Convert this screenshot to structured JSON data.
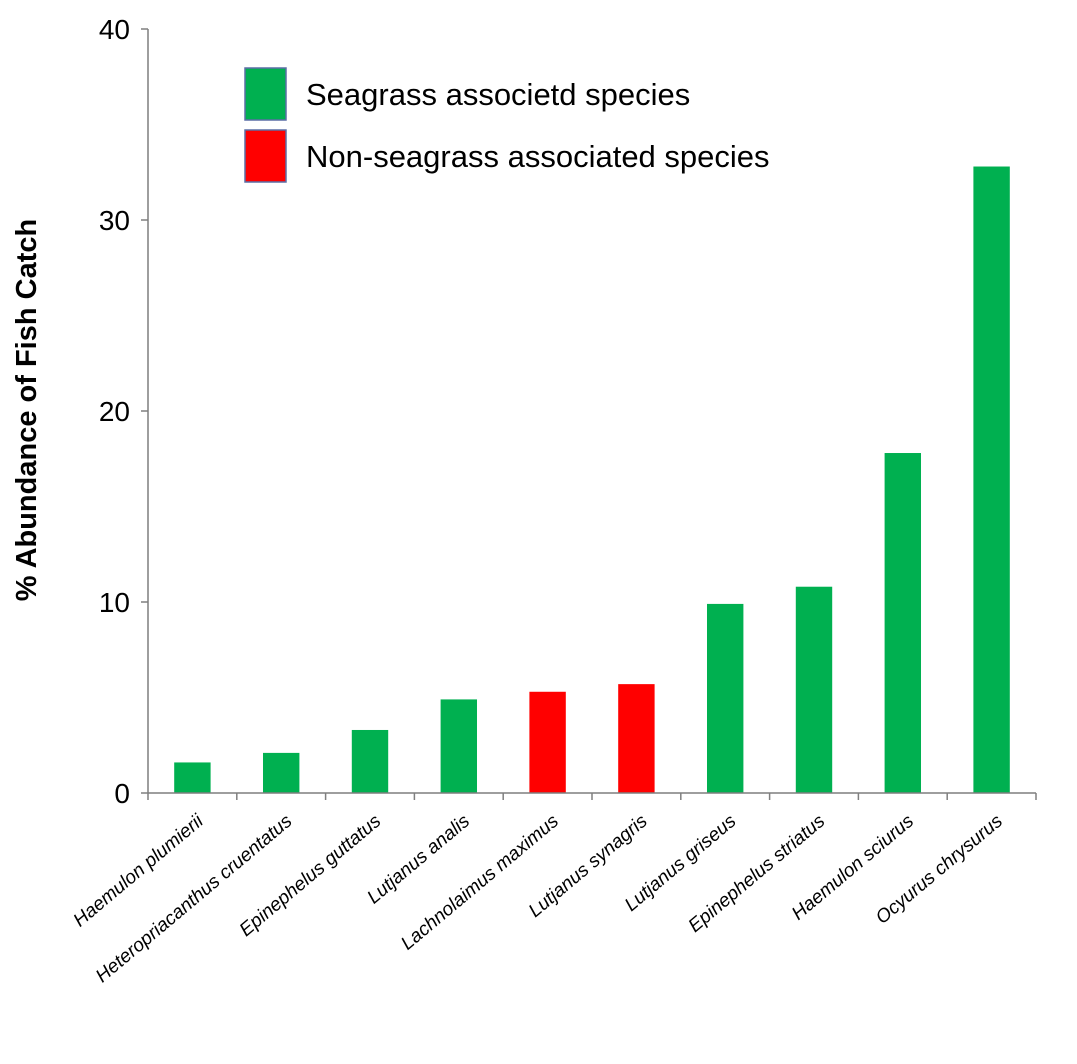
{
  "chart_data": {
    "type": "bar",
    "title": "",
    "xlabel": "",
    "ylabel": "% Abundance of Fish Catch",
    "ylim": [
      0,
      40
    ],
    "yticks": [
      0,
      10,
      20,
      30,
      40
    ],
    "grid": false,
    "legend_position": "top-left",
    "categories": [
      "Haemulon plumierii",
      "Heteropriacanthus cruentatus",
      "Epinephelus guttatus",
      "Lutjanus analis",
      "Lachnolaimus maximus",
      "Lutjanus synagris",
      "Lutjanus griseus",
      "Epinephelus striatus",
      "Haemulon sciurus",
      "Ocyurus chrysurus"
    ],
    "values": [
      1.6,
      2.1,
      3.3,
      4.9,
      5.3,
      5.7,
      9.9,
      10.8,
      17.8,
      32.8
    ],
    "groups": [
      "seagrass",
      "seagrass",
      "seagrass",
      "seagrass",
      "non-seagrass",
      "non-seagrass",
      "seagrass",
      "seagrass",
      "seagrass",
      "seagrass"
    ],
    "legend": [
      {
        "key": "seagrass",
        "label": "Seagrass associetd species",
        "color": "#00b050"
      },
      {
        "key": "non-seagrass",
        "label": "Non-seagrass associated species",
        "color": "#ff0000"
      }
    ]
  }
}
